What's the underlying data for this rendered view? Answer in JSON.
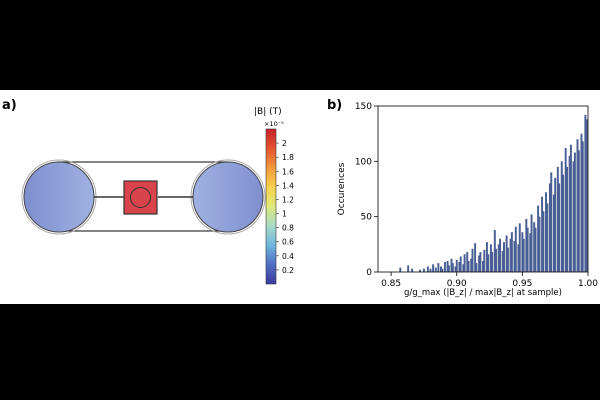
{
  "panel_a": {
    "label": "a)",
    "colorbar": {
      "title": "|B| (T)",
      "multiplier": "×10⁻⁵",
      "ticks": [
        0.2,
        0.4,
        0.6,
        0.8,
        1,
        1.2,
        1.4,
        1.6,
        1.8,
        2
      ],
      "range": [
        0,
        2.2
      ],
      "colors": [
        "#3b3aa0",
        "#4f6fc2",
        "#6fb6e0",
        "#a6dbc6",
        "#dfe979",
        "#f7d14b",
        "#f39a3a",
        "#e4532f",
        "#c8202a"
      ]
    },
    "colors": {
      "coil": "#8b9bd6",
      "sample_box": "#d9444c"
    }
  },
  "panel_b": {
    "label": "b)",
    "chart_data": {
      "type": "bar",
      "title": "",
      "xlabel": "g/g_max  (|B_z| / max|B_z| at sample)",
      "ylabel": "Occurences",
      "xlim": [
        0.84,
        1.0
      ],
      "ylim": [
        0,
        150
      ],
      "xticks": [
        0.85,
        0.9,
        0.95,
        1.0
      ],
      "yticks": [
        0,
        50,
        100,
        150
      ],
      "bin_width": 0.0015,
      "bars": [
        [
          0.857,
          4
        ],
        [
          0.863,
          6
        ],
        [
          0.866,
          3
        ],
        [
          0.872,
          2
        ],
        [
          0.875,
          3
        ],
        [
          0.878,
          5
        ],
        [
          0.88,
          3
        ],
        [
          0.882,
          7
        ],
        [
          0.884,
          4
        ],
        [
          0.886,
          8
        ],
        [
          0.888,
          5
        ],
        [
          0.889,
          3
        ],
        [
          0.891,
          9
        ],
        [
          0.893,
          10
        ],
        [
          0.894,
          6
        ],
        [
          0.896,
          12
        ],
        [
          0.897,
          8
        ],
        [
          0.899,
          5
        ],
        [
          0.9,
          11
        ],
        [
          0.902,
          9
        ],
        [
          0.903,
          14
        ],
        [
          0.905,
          7
        ],
        [
          0.906,
          16
        ],
        [
          0.908,
          18
        ],
        [
          0.909,
          10
        ],
        [
          0.911,
          12
        ],
        [
          0.912,
          21
        ],
        [
          0.914,
          26
        ],
        [
          0.915,
          8
        ],
        [
          0.917,
          15
        ],
        [
          0.918,
          18
        ],
        [
          0.92,
          10
        ],
        [
          0.921,
          20
        ],
        [
          0.923,
          27
        ],
        [
          0.924,
          16
        ],
        [
          0.926,
          25
        ],
        [
          0.927,
          18
        ],
        [
          0.929,
          38
        ],
        [
          0.93,
          21
        ],
        [
          0.932,
          25
        ],
        [
          0.933,
          30
        ],
        [
          0.935,
          19
        ],
        [
          0.936,
          27
        ],
        [
          0.938,
          33
        ],
        [
          0.939,
          22
        ],
        [
          0.941,
          30
        ],
        [
          0.942,
          36
        ],
        [
          0.944,
          28
        ],
        [
          0.945,
          41
        ],
        [
          0.947,
          25
        ],
        [
          0.948,
          44
        ],
        [
          0.95,
          36
        ],
        [
          0.951,
          30
        ],
        [
          0.953,
          48
        ],
        [
          0.954,
          40
        ],
        [
          0.956,
          35
        ],
        [
          0.957,
          52
        ],
        [
          0.959,
          45
        ],
        [
          0.96,
          40
        ],
        [
          0.962,
          60
        ],
        [
          0.963,
          50
        ],
        [
          0.965,
          68
        ],
        [
          0.966,
          55
        ],
        [
          0.968,
          72
        ],
        [
          0.969,
          62
        ],
        [
          0.971,
          80
        ],
        [
          0.972,
          90
        ],
        [
          0.974,
          70
        ],
        [
          0.975,
          85
        ],
        [
          0.977,
          95
        ],
        [
          0.978,
          80
        ],
        [
          0.98,
          100
        ],
        [
          0.981,
          88
        ],
        [
          0.983,
          112
        ],
        [
          0.984,
          95
        ],
        [
          0.986,
          105
        ],
        [
          0.987,
          115
        ],
        [
          0.989,
          100
        ],
        [
          0.99,
          108
        ],
        [
          0.992,
          120
        ],
        [
          0.993,
          110
        ],
        [
          0.995,
          125
        ],
        [
          0.996,
          118
        ],
        [
          0.998,
          142
        ],
        [
          0.999,
          138
        ]
      ]
    }
  }
}
